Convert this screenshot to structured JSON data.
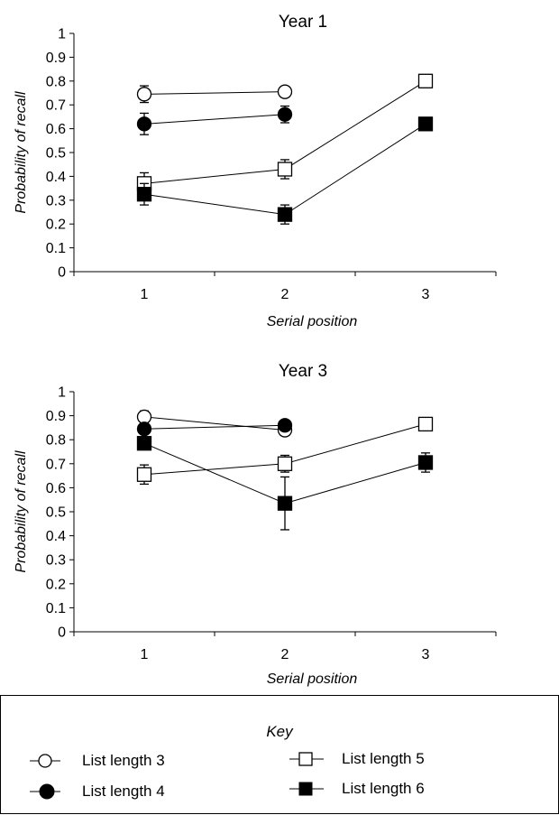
{
  "chart_data": [
    {
      "type": "line",
      "title": "Year 1",
      "xlabel": "Serial position",
      "ylabel": "Probability of recall",
      "x_ticks": [
        "1",
        "2",
        "3"
      ],
      "y_ticks": [
        "0",
        "0.1",
        "0.2",
        "0.3",
        "0.4",
        "0.5",
        "0.6",
        "0.7",
        "0.8",
        "0.9",
        "1"
      ],
      "xlim": [
        0.5,
        3.5
      ],
      "ylim": [
        0,
        1
      ],
      "series": [
        {
          "name": "List length 3",
          "marker": "circle-open",
          "x": [
            1,
            2
          ],
          "values": [
            0.745,
            0.755
          ],
          "errors": [
            0.035,
            0.02
          ]
        },
        {
          "name": "List length 4",
          "marker": "circle-filled",
          "x": [
            1,
            2
          ],
          "values": [
            0.62,
            0.66
          ],
          "errors": [
            0.045,
            0.035
          ]
        },
        {
          "name": "List length 5",
          "marker": "square-open",
          "x": [
            1,
            2,
            3
          ],
          "values": [
            0.37,
            0.43,
            0.8
          ],
          "errors": [
            0.045,
            0.04,
            0.01
          ]
        },
        {
          "name": "List length 6",
          "marker": "square-filled",
          "x": [
            1,
            2,
            3
          ],
          "values": [
            0.325,
            0.24,
            0.62
          ],
          "errors": [
            0.045,
            0.04,
            0.025
          ]
        }
      ]
    },
    {
      "type": "line",
      "title": "Year 3",
      "xlabel": "Serial position",
      "ylabel": "Probability of recall",
      "x_ticks": [
        "1",
        "2",
        "3"
      ],
      "y_ticks": [
        "0",
        "0.1",
        "0.2",
        "0.3",
        "0.4",
        "0.5",
        "0.6",
        "0.7",
        "0.8",
        "0.9",
        "1"
      ],
      "xlim": [
        0.5,
        3.5
      ],
      "ylim": [
        0,
        1
      ],
      "series": [
        {
          "name": "List length 3",
          "marker": "circle-open",
          "x": [
            1,
            2
          ],
          "values": [
            0.895,
            0.84
          ],
          "errors": [
            0.025,
            0.01
          ]
        },
        {
          "name": "List length 4",
          "marker": "circle-filled",
          "x": [
            1,
            2
          ],
          "values": [
            0.845,
            0.86
          ],
          "errors": [
            0.02,
            0.015
          ]
        },
        {
          "name": "List length 5",
          "marker": "square-open",
          "x": [
            1,
            2,
            3
          ],
          "values": [
            0.655,
            0.7,
            0.865
          ],
          "errors": [
            0.04,
            0.035,
            0.01
          ]
        },
        {
          "name": "List length 6",
          "marker": "square-filled",
          "x": [
            1,
            2,
            3
          ],
          "values": [
            0.785,
            0.535,
            0.705
          ],
          "errors": [
            0.02,
            0.11,
            0.04
          ]
        }
      ]
    }
  ],
  "key": {
    "title": "Key",
    "items": [
      {
        "label": "List length 3",
        "marker": "circle-open"
      },
      {
        "label": "List length 5",
        "marker": "square-open"
      },
      {
        "label": "List length 4",
        "marker": "circle-filled"
      },
      {
        "label": "List length 6",
        "marker": "square-filled"
      }
    ]
  }
}
